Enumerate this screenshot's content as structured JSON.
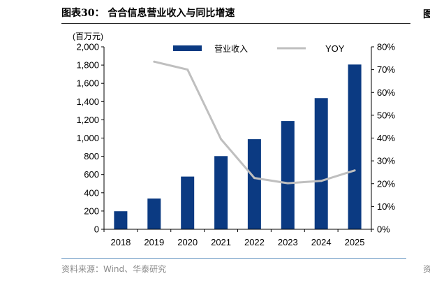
{
  "title": "图表30： 合合信息营业收入与同比增速",
  "source": "资料来源：Wind、华泰研究",
  "chart_data": {
    "type": "bar",
    "unit_label": "(百万元)",
    "categories": [
      "2018",
      "2019",
      "2020",
      "2021",
      "2022",
      "2023",
      "2024",
      "2025"
    ],
    "series": [
      {
        "name": "营业收入",
        "type": "bar",
        "axis": "left",
        "color": "#0b3a82",
        "values": [
          198,
          337,
          578,
          802,
          988,
          1187,
          1438,
          1806
        ]
      },
      {
        "name": "YOY",
        "type": "line",
        "axis": "right",
        "color": "#bfbfbf",
        "values": [
          null,
          73.5,
          70.0,
          39.5,
          22.5,
          20.2,
          21.2,
          25.8
        ]
      }
    ],
    "left_axis": {
      "min": 0,
      "max": 2000,
      "ticks": [
        "0",
        "200",
        "400",
        "600",
        "800",
        "1,000",
        "1,200",
        "1,400",
        "1,600",
        "1,800",
        "2,000"
      ]
    },
    "right_axis": {
      "min": 0,
      "max": 80,
      "ticks": [
        "0%",
        "10%",
        "20%",
        "30%",
        "40%",
        "50%",
        "60%",
        "70%",
        "80%"
      ]
    },
    "legend_position": "top-center",
    "grid": false
  }
}
